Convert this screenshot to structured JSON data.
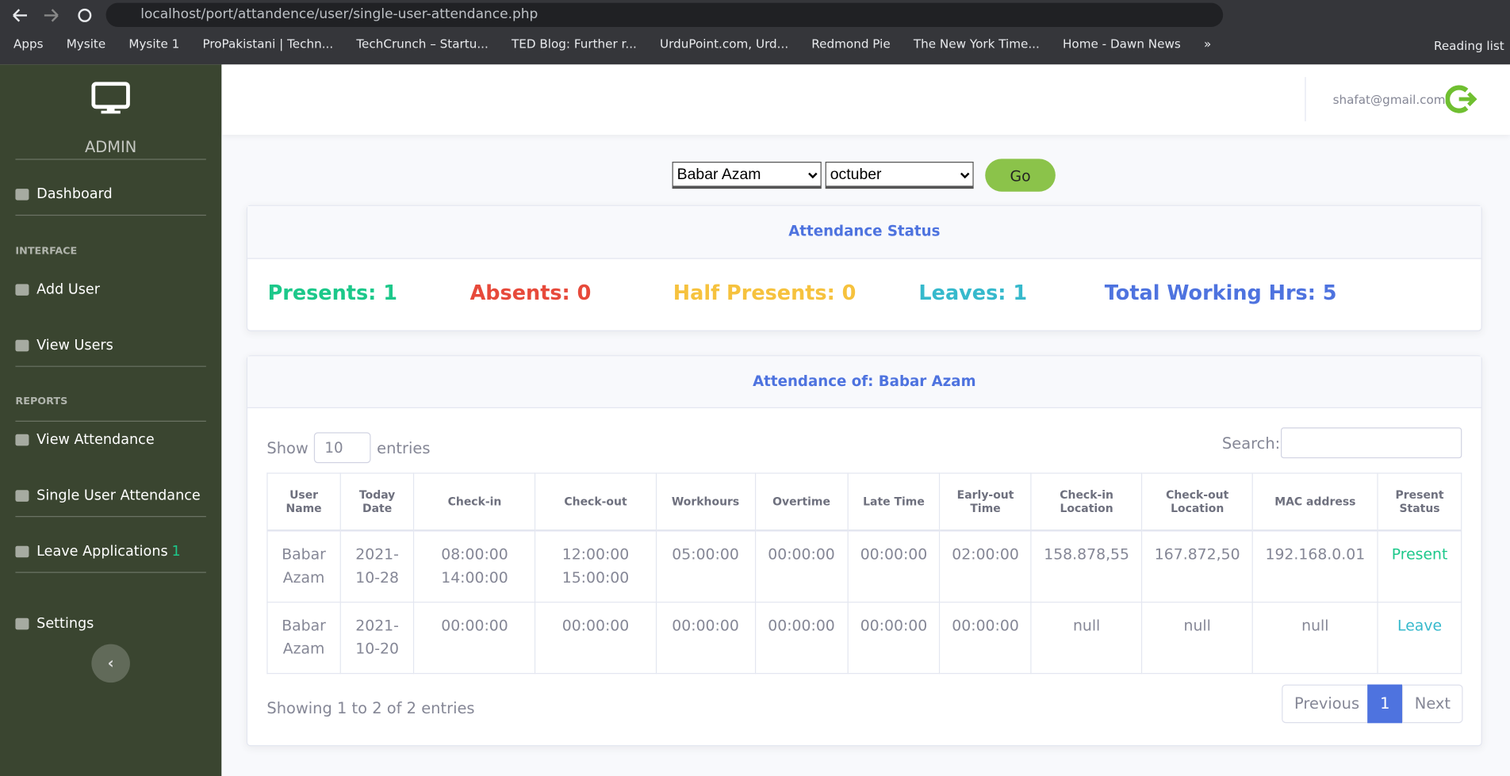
{
  "browser": {
    "url": "localhost/port/attandence/user/single-user-attendance.php",
    "bookmarks": [
      "Apps",
      "Mysite",
      "Mysite 1",
      "ProPakistani | Techn...",
      "TechCrunch – Startu...",
      "TED Blog: Further r...",
      "UrduPoint.com, Urd...",
      "Redmond Pie",
      "The New York Time...",
      "Home - Dawn News",
      "»"
    ],
    "reading_list": "Reading list"
  },
  "sidebar": {
    "brand": "ADMIN",
    "items": [
      {
        "label": "Dashboard"
      },
      {
        "heading": "INTERFACE"
      },
      {
        "label": "Add User"
      },
      {
        "label": "View Users"
      },
      {
        "heading": "REPORTS"
      },
      {
        "label": "View Attendance"
      },
      {
        "label": "Single User Attendance"
      },
      {
        "label": "Leave Applications",
        "badge": "1"
      },
      {
        "label": "Settings"
      }
    ]
  },
  "topbar": {
    "email": "shafat@gmail.com"
  },
  "filters": {
    "user": "Babar Azam",
    "month": "octuber",
    "button": "Go"
  },
  "status": {
    "title": "Attendance Status",
    "items": [
      "Presents: 1",
      "Absents: 0",
      "Half Presents: 0",
      "Leaves: 1",
      "Total Working Hrs: 5"
    ]
  },
  "table": {
    "title": "Attendance of: Babar Azam",
    "show_label": "Show",
    "page_size": "10",
    "entries_label": "entries",
    "search_label": "Search:",
    "columns": [
      "User Name",
      "Today Date",
      "Check-in",
      "Check-out",
      "Workhours",
      "Overtime",
      "Late Time",
      "Early-out Time",
      "Check-in Location",
      "Check-out Location",
      "MAC address",
      "Present Status"
    ],
    "rows": [
      [
        "Babar Azam",
        "2021-10-28",
        [
          "08:00:00",
          "14:00:00"
        ],
        [
          "12:00:00",
          "15:00:00"
        ],
        "05:00:00",
        "00:00:00",
        "00:00:00",
        "02:00:00",
        "158.878,55",
        "167.872,50",
        "192.168.0.01",
        "Present"
      ],
      [
        "Babar Azam",
        "2021-10-20",
        [
          "00:00:00"
        ],
        [
          "00:00:00"
        ],
        "00:00:00",
        "00:00:00",
        "00:00:00",
        "00:00:00",
        "null",
        "null",
        "null",
        "Leave"
      ]
    ],
    "info": "Showing 1 to 2 of 2 entries",
    "pagination": [
      "Previous",
      "1",
      "Next"
    ]
  }
}
